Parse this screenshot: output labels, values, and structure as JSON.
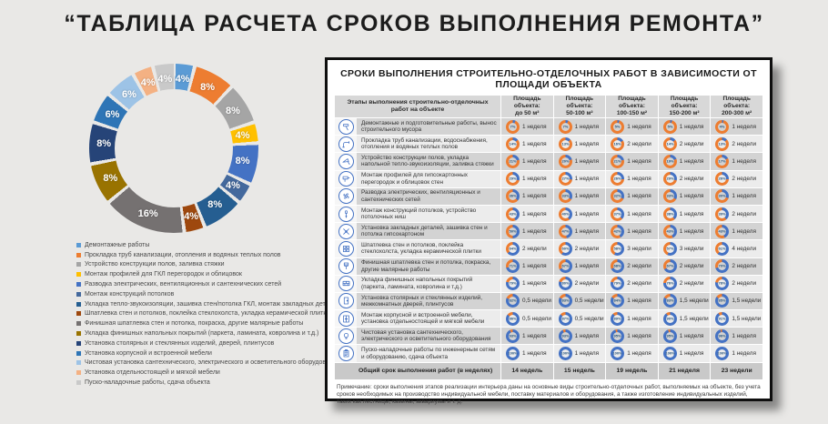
{
  "page_title": "“ТАБЛИЦА РАСЧЕТА СРОКОВ ВЫПОЛНЕНИЯ РЕМОНТА”",
  "colors": {
    "page_bg": "#E9E8E6",
    "panel_border": "#0F0F0F",
    "header_bg": "#D8D8D8",
    "row_odd": "#D3D3D3",
    "row_even": "#ECECEC",
    "total_bg": "#C9C9C9",
    "progress_blue": "#4472C4",
    "remaining_orange": "#ED7D31",
    "icon_stroke": "#4472C4",
    "pct_text": "#1F4E79"
  },
  "chart_data": [
    {
      "type": "pie",
      "donut": true,
      "labels_shown": "percent",
      "legend_position": "bottom-left",
      "slices": [
        {
          "label": "Демонтажные работы",
          "value": 4,
          "color": "#5B9BD5"
        },
        {
          "label": "Прокладка труб канализации, отопления и водяных теплых полов",
          "value": 8,
          "color": "#ED7D31"
        },
        {
          "label": "Устройство конструкции полов, заливка стяжки",
          "value": 8,
          "color": "#A5A5A5"
        },
        {
          "label": "Монтаж профилей для ГКЛ перегородок и облицовок",
          "value": 4,
          "color": "#FFC000"
        },
        {
          "label": "Разводка электрических, вентиляционных и сантехнических сетей",
          "value": 8,
          "color": "#4472C4"
        },
        {
          "label": "Монтаж конструкций потолков",
          "value": 4,
          "color": "#44699D"
        },
        {
          "label": "Укладка тепло-звукоизоляции, зашивка стен/потолка ГКЛ, монтаж закладных деталей",
          "value": 8,
          "color": "#255E91"
        },
        {
          "label": "Шпатлевка стен и потолков, поклейка стеклохолста, укладка керамической плитки",
          "value": 4,
          "color": "#9E480E"
        },
        {
          "label": "Финишная шпатлевка стен и потолка, покраска, другие малярные работы",
          "value": 16,
          "color": "#757171"
        },
        {
          "label": "Укладка финишных напольных покрытий (паркета, ламината, ковролина и т.д.)",
          "value": 8,
          "color": "#997300"
        },
        {
          "label": "Установка столярных и стеклянных изделий, дверей, плинтусов",
          "value": 8,
          "color": "#264478"
        },
        {
          "label": "Установка корпусной и встроенной мебели",
          "value": 6,
          "color": "#2E75B6"
        },
        {
          "label": "Чистовая установка сантехнического, электрического и осветительного оборудования",
          "value": 6,
          "color": "#9DC3E6"
        },
        {
          "label": "Установка отдельностоящей и мягкой мебели",
          "value": 4,
          "color": "#F4B183"
        },
        {
          "label": "Пуско-наладочные работы, сдача объекта",
          "value": 4,
          "color": "#C9C9C9"
        }
      ]
    },
    {
      "type": "table",
      "title": "СРОКИ ВЫПОЛНЕНИЯ СТРОИТЕЛЬНО-ОТДЕЛОЧНЫХ РАБОТ В ЗАВИСИМОСТИ ОТ ПЛОЩАДИ ОБЪЕКТА",
      "stage_header": "Этапы выполнения строительно-отделочных работ на объекте",
      "area_prefix": "Площадь объекта:",
      "columns": [
        "до 50 м²",
        "50-100 м²",
        "100-150 м²",
        "150-200 м²",
        "200-300 м²"
      ],
      "rows": [
        {
          "icon": "hammer-icon",
          "label": "Демонтажные и подготовительные работы, вынос строительного мусора",
          "cells": [
            {
              "pct": 7,
              "weeks": "1 неделя"
            },
            {
              "pct": 7,
              "weeks": "1 неделя"
            },
            {
              "pct": 5,
              "weeks": "1 неделя"
            },
            {
              "pct": 5,
              "weeks": "1 неделя"
            },
            {
              "pct": 4,
              "weeks": "1 неделя"
            }
          ]
        },
        {
          "icon": "pipes-icon",
          "label": "Прокладка труб канализации, водоснабжения, отопления и водяных теплых полов",
          "cells": [
            {
              "pct": 14,
              "weeks": "1 неделя"
            },
            {
              "pct": 13,
              "weeks": "1 неделя"
            },
            {
              "pct": 16,
              "weeks": "2 недели"
            },
            {
              "pct": 14,
              "weeks": "2 недели"
            },
            {
              "pct": 13,
              "weeks": "2 недели"
            }
          ]
        },
        {
          "icon": "trowel-icon",
          "label": "Устройство конструкции полов, укладка напольной тепло-звукоизоляции, заливка стяжки",
          "cells": [
            {
              "pct": 21,
              "weeks": "1 неделя"
            },
            {
              "pct": 20,
              "weeks": "1 неделя"
            },
            {
              "pct": 21,
              "weeks": "1 неделя"
            },
            {
              "pct": 19,
              "weeks": "1 неделя"
            },
            {
              "pct": 17,
              "weeks": "1 неделя"
            }
          ]
        },
        {
          "icon": "drill-icon",
          "label": "Монтаж профилей для гипсокартонных перегородок и облицовок стен",
          "cells": [
            {
              "pct": 29,
              "weeks": "1 неделя"
            },
            {
              "pct": 27,
              "weeks": "1 неделя"
            },
            {
              "pct": 26,
              "weeks": "1 неделя"
            },
            {
              "pct": 29,
              "weeks": "2 недели"
            },
            {
              "pct": 26,
              "weeks": "2 недели"
            }
          ]
        },
        {
          "icon": "fan-icon",
          "label": "Разводка электрических, вентиляционных и сантехнических сетей",
          "cells": [
            {
              "pct": 36,
              "weeks": "1 неделя"
            },
            {
              "pct": 33,
              "weeks": "1 неделя"
            },
            {
              "pct": 32,
              "weeks": "1 неделя"
            },
            {
              "pct": 33,
              "weeks": "1 неделя"
            },
            {
              "pct": 30,
              "weeks": "1 неделя"
            }
          ]
        },
        {
          "icon": "screwdriver-icon",
          "label": "Монтаж конструкций потолков, устройство потолочных ниш",
          "cells": [
            {
              "pct": 43,
              "weeks": "1 неделя"
            },
            {
              "pct": 40,
              "weeks": "1 неделя"
            },
            {
              "pct": 37,
              "weeks": "1 неделя"
            },
            {
              "pct": 38,
              "weeks": "1 неделя"
            },
            {
              "pct": 39,
              "weeks": "2 недели"
            }
          ]
        },
        {
          "icon": "tools-icon",
          "label": "Установка закладных деталей, зашивка стен и потолка гипсокартоном",
          "cells": [
            {
              "pct": 50,
              "weeks": "1 неделя"
            },
            {
              "pct": 47,
              "weeks": "1 неделя"
            },
            {
              "pct": 42,
              "weeks": "1 неделя"
            },
            {
              "pct": 43,
              "weeks": "1 неделя"
            },
            {
              "pct": 43,
              "weeks": "1 неделя"
            }
          ]
        },
        {
          "icon": "tiles-icon",
          "label": "Шпатлевка стен и потолков, поклейка стеклохолста, укладка керамической плитки",
          "cells": [
            {
              "pct": 64,
              "weeks": "2 недели"
            },
            {
              "pct": 60,
              "weeks": "2 недели"
            },
            {
              "pct": 58,
              "weeks": "3 недели"
            },
            {
              "pct": 57,
              "weeks": "3 недели"
            },
            {
              "pct": 61,
              "weeks": "4 недели"
            }
          ]
        },
        {
          "icon": "paintbrush-icon",
          "label": "Финишная шпатлевка стен и потолка, покраска, другие малярные работы",
          "cells": [
            {
              "pct": 71,
              "weeks": "1 неделя"
            },
            {
              "pct": 67,
              "weeks": "1 неделя"
            },
            {
              "pct": 68,
              "weeks": "2 недели"
            },
            {
              "pct": 67,
              "weeks": "2 недели"
            },
            {
              "pct": 70,
              "weeks": "2 недели"
            }
          ]
        },
        {
          "icon": "flooring-icon",
          "label": "Укладка финишных напольных покрытий (паркета, ламината, ковролина и т.д.)",
          "cells": [
            {
              "pct": 79,
              "weeks": "1 неделя"
            },
            {
              "pct": 80,
              "weeks": "2 недели"
            },
            {
              "pct": 79,
              "weeks": "2 недели"
            },
            {
              "pct": 76,
              "weeks": "2 недели"
            },
            {
              "pct": 78,
              "weeks": "2 недели"
            }
          ]
        },
        {
          "icon": "door-icon",
          "label": "Установка столярных и стеклянных изделий, межкомнатных дверей, плинтусов",
          "cells": [
            {
              "pct": 82,
              "weeks": "0,5 недели"
            },
            {
              "pct": 83,
              "weeks": "0,5 недели"
            },
            {
              "pct": 84,
              "weeks": "1 неделя"
            },
            {
              "pct": 83,
              "weeks": "1,5 недели"
            },
            {
              "pct": 85,
              "weeks": "1,5 недели"
            }
          ]
        },
        {
          "icon": "cabinet-icon",
          "label": "Монтаж корпусной и встроенной мебели, установка отдельностоящей и мягкой мебели",
          "cells": [
            {
              "pct": 86,
              "weeks": "0,5 недели"
            },
            {
              "pct": 87,
              "weeks": "0,5 недели"
            },
            {
              "pct": 89,
              "weeks": "1 неделя"
            },
            {
              "pct": 90,
              "weeks": "1,5 недели"
            },
            {
              "pct": 91,
              "weeks": "1,5 недели"
            }
          ]
        },
        {
          "icon": "lightbulb-icon",
          "label": "Чистовая установка сантехнического, электрического и осветительного оборудования",
          "cells": [
            {
              "pct": 93,
              "weeks": "1 неделя"
            },
            {
              "pct": 93,
              "weeks": "1 неделя"
            },
            {
              "pct": 95,
              "weeks": "1 неделя"
            },
            {
              "pct": 95,
              "weeks": "1 неделя"
            },
            {
              "pct": 96,
              "weeks": "1 неделя"
            }
          ]
        },
        {
          "icon": "clipboard-icon",
          "label": "Пуско-наладочные работы по инженерным сетям и оборудованию, сдача объекта",
          "cells": [
            {
              "pct": 100,
              "weeks": "1 неделя"
            },
            {
              "pct": 100,
              "weeks": "1 неделя"
            },
            {
              "pct": 100,
              "weeks": "1 неделя"
            },
            {
              "pct": 100,
              "weeks": "1 неделя"
            },
            {
              "pct": 100,
              "weeks": "1 неделя"
            }
          ]
        }
      ],
      "total_label": "Общий срок выполнения работ (в неделях)",
      "totals": [
        "14 недель",
        "15 недель",
        "19 недель",
        "21 неделя",
        "23 недели"
      ],
      "note": "Примечание: сроки выполнения этапов реализации интерьера даны на основные виды строительно-отделочных работ, выполняемых на объекте, без учета сроков необходимых на производство индивидуальной мебели, поставку материалов и оборудования, а также изготовление индивидуальных изделий, таких как лестницы, камины, аквариумы и т. д."
    }
  ]
}
